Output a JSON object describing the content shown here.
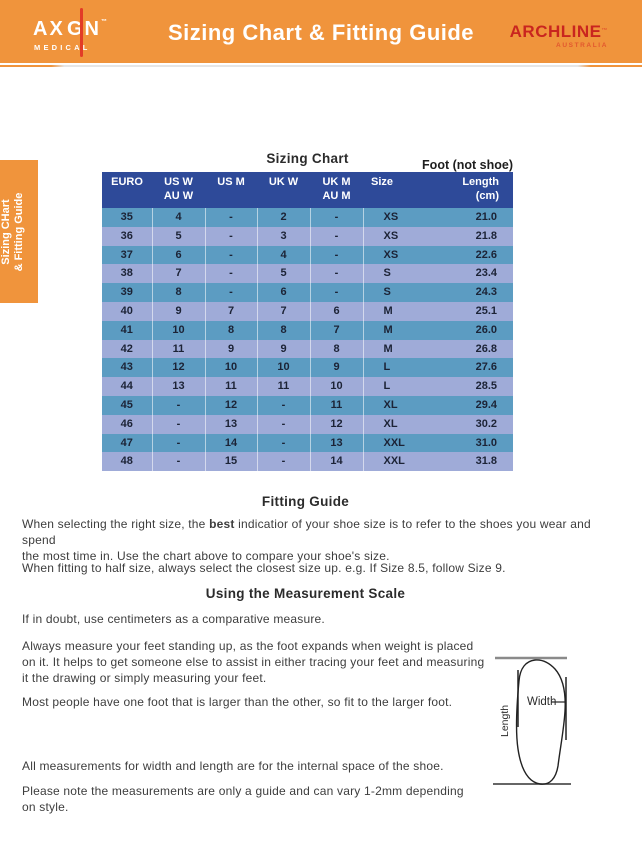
{
  "header": {
    "title": "Sizing Chart & Fitting Guide",
    "logo_left": {
      "word_part1": "AX",
      "word_part2": "GN",
      "tm": "™",
      "subtitle": "MEDICAL"
    },
    "logo_right": {
      "word": "ARCHLINE",
      "tm": "™",
      "subtitle": "AUSTRALIA"
    }
  },
  "side_tab": {
    "line1": "Sizing CHart",
    "line2": "& Fitting Guide"
  },
  "chart_section": {
    "heading": "Sizing Chart",
    "note": "Foot (not shoe)"
  },
  "table": {
    "columns": [
      "EURO",
      "US W\nAU W",
      "US M",
      "UK W",
      "UK M\nAU M",
      "Size",
      "Length\n(cm)"
    ],
    "rows": [
      [
        "35",
        "4",
        "-",
        "2",
        "-",
        "XS",
        "21.0"
      ],
      [
        "36",
        "5",
        "-",
        "3",
        "-",
        "XS",
        "21.8"
      ],
      [
        "37",
        "6",
        "-",
        "4",
        "-",
        "XS",
        "22.6"
      ],
      [
        "38",
        "7",
        "-",
        "5",
        "-",
        "S",
        "23.4"
      ],
      [
        "39",
        "8",
        "-",
        "6",
        "-",
        "S",
        "24.3"
      ],
      [
        "40",
        "9",
        "7",
        "7",
        "6",
        "M",
        "25.1"
      ],
      [
        "41",
        "10",
        "8",
        "8",
        "7",
        "M",
        "26.0"
      ],
      [
        "42",
        "11",
        "9",
        "9",
        "8",
        "M",
        "26.8"
      ],
      [
        "43",
        "12",
        "10",
        "10",
        "9",
        "L",
        "27.6"
      ],
      [
        "44",
        "13",
        "11",
        "11",
        "10",
        "L",
        "28.5"
      ],
      [
        "45",
        "-",
        "12",
        "-",
        "11",
        "XL",
        "29.4"
      ],
      [
        "46",
        "-",
        "13",
        "-",
        "12",
        "XL",
        "30.2"
      ],
      [
        "47",
        "-",
        "14",
        "-",
        "13",
        "XXL",
        "31.0"
      ],
      [
        "48",
        "-",
        "15",
        "-",
        "14",
        "XXL",
        "31.8"
      ]
    ]
  },
  "chart_data": {
    "type": "table",
    "title": "Sizing Chart",
    "note": "Foot (not shoe)",
    "columns": [
      "EURO",
      "US W / AU W",
      "US M",
      "UK W",
      "UK M / AU M",
      "Size",
      "Length (cm)"
    ],
    "rows": [
      [
        "35",
        "4",
        "-",
        "2",
        "-",
        "XS",
        "21.0"
      ],
      [
        "36",
        "5",
        "-",
        "3",
        "-",
        "XS",
        "21.8"
      ],
      [
        "37",
        "6",
        "-",
        "4",
        "-",
        "XS",
        "22.6"
      ],
      [
        "38",
        "7",
        "-",
        "5",
        "-",
        "S",
        "23.4"
      ],
      [
        "39",
        "8",
        "-",
        "6",
        "-",
        "S",
        "24.3"
      ],
      [
        "40",
        "9",
        "7",
        "7",
        "6",
        "M",
        "25.1"
      ],
      [
        "41",
        "10",
        "8",
        "8",
        "7",
        "M",
        "26.0"
      ],
      [
        "42",
        "11",
        "9",
        "9",
        "8",
        "M",
        "26.8"
      ],
      [
        "43",
        "12",
        "10",
        "10",
        "9",
        "L",
        "27.6"
      ],
      [
        "44",
        "13",
        "11",
        "11",
        "10",
        "L",
        "28.5"
      ],
      [
        "45",
        "-",
        "12",
        "-",
        "11",
        "XL",
        "29.4"
      ],
      [
        "46",
        "-",
        "13",
        "-",
        "12",
        "XL",
        "30.2"
      ],
      [
        "47",
        "-",
        "14",
        "-",
        "13",
        "XXL",
        "31.0"
      ],
      [
        "48",
        "-",
        "15",
        "-",
        "14",
        "XXL",
        "31.8"
      ]
    ]
  },
  "fitting_guide": {
    "heading": "Fitting Guide",
    "para1_part1": "When selecting the right size, the ",
    "para1_bold": "best",
    "para1_part2": " indicatior of your shoe size is to refer to the shoes you wear and spend\nthe most time in. Use the chart above to compare your shoe's size.",
    "para2": "When fitting to half size, always select the closest size up. e.g. If Size 8.5, follow Size 9."
  },
  "measurement": {
    "heading": "Using the Measurement Scale",
    "para1": "If in doubt, use centimeters as a comparative measure.",
    "para2": "Always measure your feet standing up, as the foot expands when weight is placed\non it. It helps to get someone else to assist in either tracing your feet and measuring\nit the drawing or simply measuring your feet.",
    "para3": "Most people have one foot that is larger than the other, so fit to the larger foot.",
    "para4": "All measurements for width and length are for the internal space of the shoe.",
    "para5": "Please note the measurements are only a guide and can vary 1-2mm depending\non style."
  },
  "diagram": {
    "width_label": "Width",
    "length_label": "Length"
  },
  "colors": {
    "orange": "#F0943C",
    "table_header": "#2E4A99",
    "row_a": "#5C9CC2",
    "row_b": "#9FABD8",
    "brand_red": "#C9251F",
    "line_red": "#E23B27",
    "aus_red": "#E2572E"
  }
}
